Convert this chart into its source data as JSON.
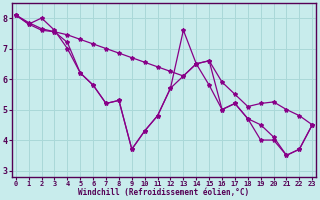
{
  "background_color": "#c8ecec",
  "grid_color": "#aad8d8",
  "line_color": "#880088",
  "x": [
    0,
    1,
    2,
    3,
    4,
    5,
    6,
    7,
    8,
    9,
    10,
    11,
    12,
    13,
    14,
    15,
    16,
    17,
    18,
    19,
    20,
    21,
    22,
    23
  ],
  "y_zigzag": [
    8.1,
    7.8,
    8.0,
    7.6,
    7.0,
    6.2,
    5.8,
    5.2,
    5.3,
    3.7,
    4.3,
    4.8,
    5.7,
    7.6,
    6.5,
    6.6,
    5.0,
    5.2,
    4.7,
    4.5,
    4.1,
    3.5,
    3.7,
    4.5
  ],
  "y_upper": [
    8.1,
    7.85,
    7.65,
    7.55,
    7.45,
    7.3,
    7.15,
    7.0,
    6.85,
    6.7,
    6.55,
    6.4,
    6.25,
    6.1,
    6.5,
    6.6,
    5.9,
    5.5,
    5.1,
    5.2,
    5.25,
    5.0,
    4.8,
    4.5
  ],
  "y_lower": [
    8.1,
    7.8,
    7.6,
    7.55,
    7.2,
    6.2,
    5.8,
    5.2,
    5.3,
    3.7,
    4.3,
    4.8,
    5.7,
    6.1,
    6.5,
    5.8,
    5.0,
    5.2,
    4.7,
    4.0,
    4.0,
    3.5,
    3.7,
    4.5
  ],
  "ylim_min": 2.8,
  "ylim_max": 8.5,
  "xlim_min": -0.3,
  "xlim_max": 23.3,
  "yticks": [
    3,
    4,
    5,
    6,
    7,
    8
  ],
  "xticks": [
    0,
    1,
    2,
    3,
    4,
    5,
    6,
    7,
    8,
    9,
    10,
    11,
    12,
    13,
    14,
    15,
    16,
    17,
    18,
    19,
    20,
    21,
    22,
    23
  ],
  "xlabel": "Windchill (Refroidissement éolien,°C)",
  "tick_color": "#550055",
  "spine_color": "#550055",
  "xlabel_fontsize": 5.5,
  "tick_fontsize": 5,
  "ytick_fontsize": 6,
  "marker_size": 3,
  "linewidth": 0.9
}
